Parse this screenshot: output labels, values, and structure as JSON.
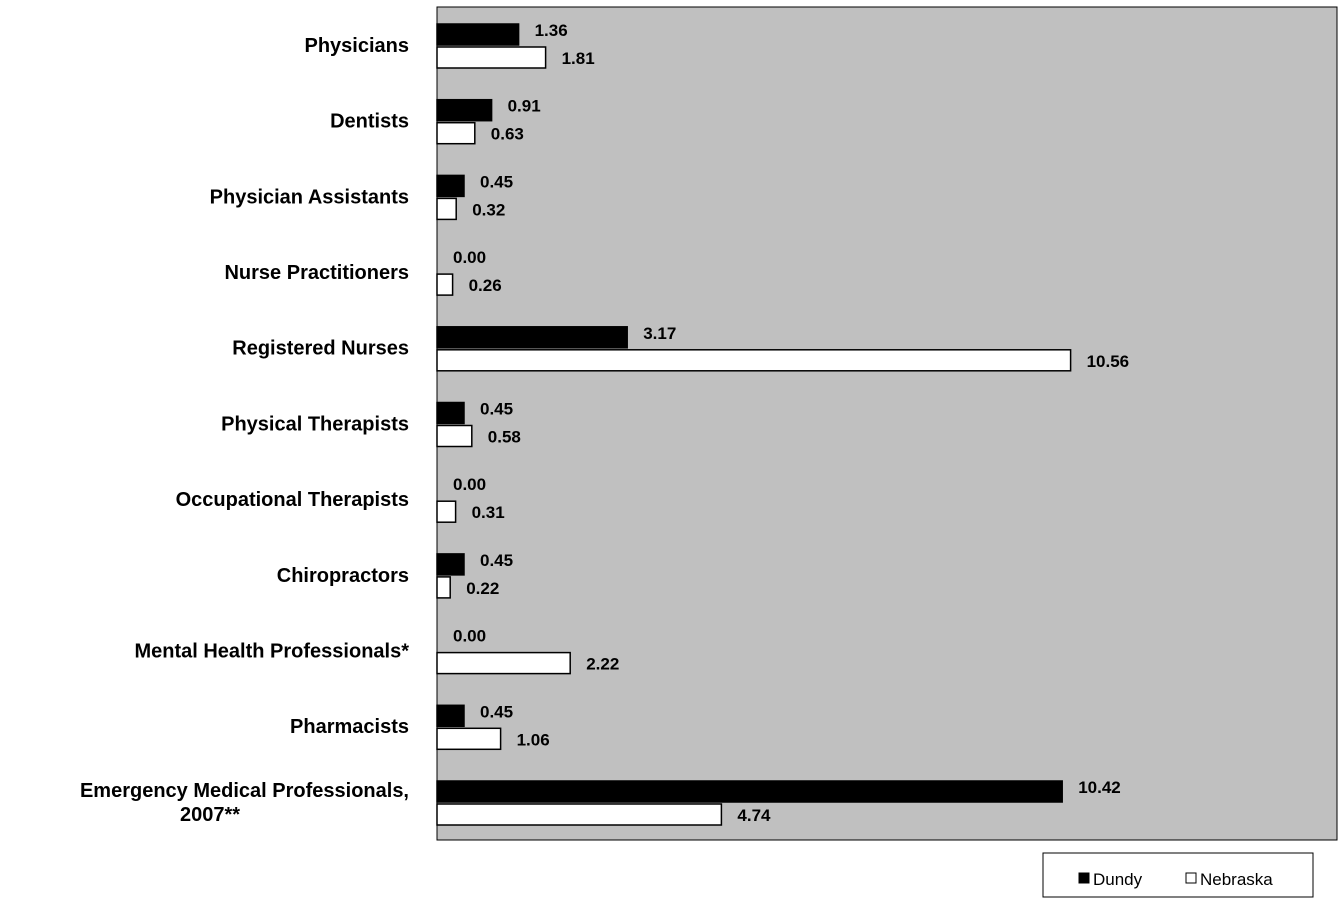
{
  "chart_data": {
    "type": "bar",
    "orientation": "horizontal",
    "categories": [
      "Physicians",
      "Dentists",
      "Physician Assistants",
      "Nurse Practitioners",
      "Registered Nurses",
      "Physical Therapists",
      "Occupational Therapists",
      "Chiropractors",
      "Mental Health Professionals*",
      "Pharmacists",
      "Emergency Medical Professionals, 2007**"
    ],
    "category_lines": [
      [
        "Physicians"
      ],
      [
        "Dentists"
      ],
      [
        "Physician Assistants"
      ],
      [
        "Nurse Practitioners"
      ],
      [
        "Registered Nurses"
      ],
      [
        "Physical Therapists"
      ],
      [
        "Occupational Therapists"
      ],
      [
        "Chiropractors"
      ],
      [
        "Mental Health Professionals*"
      ],
      [
        "Pharmacists"
      ],
      [
        "Emergency Medical Professionals,",
        "2007**"
      ]
    ],
    "series": [
      {
        "name": "Dundy",
        "color": "#000000",
        "values": [
          1.36,
          0.91,
          0.45,
          0.0,
          3.17,
          0.45,
          0.0,
          0.45,
          0.0,
          0.45,
          10.42
        ],
        "labels": [
          "1.36",
          "0.91",
          "0.45",
          "0.00",
          "3.17",
          "0.45",
          "0.00",
          "0.45",
          "0.00",
          "0.45",
          "10.42"
        ]
      },
      {
        "name": "Nebraska",
        "color": "#ffffff",
        "values": [
          1.81,
          0.63,
          0.32,
          0.26,
          10.56,
          0.58,
          0.31,
          0.22,
          2.22,
          1.06,
          4.74
        ],
        "labels": [
          "1.81",
          "0.63",
          "0.32",
          "0.26",
          "10.56",
          "0.58",
          "0.31",
          "0.22",
          "2.22",
          "1.06",
          "4.74"
        ]
      }
    ],
    "xlim": [
      0,
      15
    ],
    "grid": false,
    "plot_background": "#c0c0c0",
    "legend_position": "bottom-right"
  }
}
